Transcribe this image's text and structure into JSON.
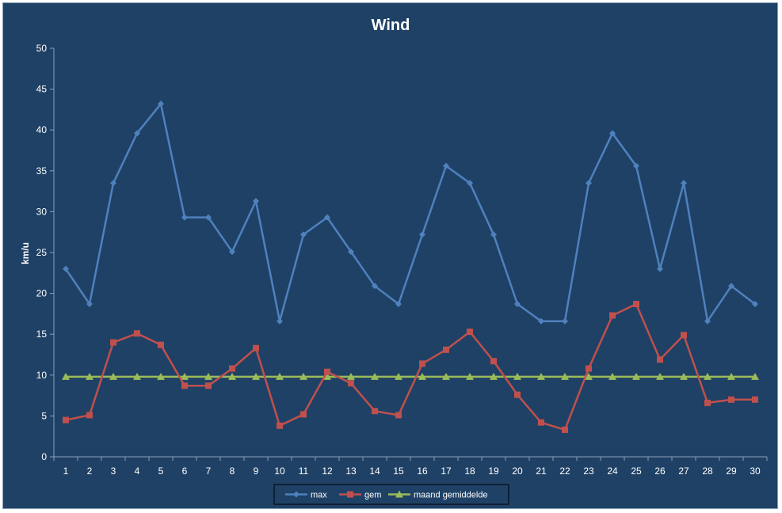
{
  "chart_data": {
    "type": "line",
    "title": "Wind",
    "xlabel": "",
    "ylabel": "km/u",
    "ylim": [
      0,
      50
    ],
    "yticks": [
      0,
      5,
      10,
      15,
      20,
      25,
      30,
      35,
      40,
      45,
      50
    ],
    "categories": [
      "1",
      "2",
      "3",
      "4",
      "5",
      "6",
      "7",
      "8",
      "9",
      "10",
      "11",
      "12",
      "13",
      "14",
      "15",
      "16",
      "17",
      "18",
      "19",
      "20",
      "21",
      "22",
      "23",
      "24",
      "25",
      "26",
      "27",
      "28",
      "29",
      "30"
    ],
    "grid": false,
    "legend_position": "bottom",
    "series": [
      {
        "name": "max",
        "color": "#4f81bd",
        "marker": "diamond",
        "values": [
          23.0,
          18.7,
          33.5,
          39.6,
          43.2,
          29.3,
          29.3,
          25.1,
          31.3,
          16.6,
          27.2,
          29.3,
          25.1,
          20.9,
          18.7,
          27.2,
          35.6,
          33.5,
          27.2,
          18.7,
          16.6,
          16.6,
          33.5,
          39.6,
          35.6,
          23.0,
          33.5,
          16.6,
          20.9,
          18.7
        ]
      },
      {
        "name": "gem",
        "color": "#c0504d",
        "marker": "square",
        "values": [
          4.5,
          5.1,
          14.0,
          15.1,
          13.7,
          8.7,
          8.7,
          10.8,
          13.3,
          3.8,
          5.2,
          10.4,
          9.0,
          5.6,
          5.1,
          11.4,
          13.1,
          15.3,
          11.7,
          7.6,
          4.2,
          3.3,
          10.8,
          17.3,
          18.7,
          11.9,
          14.9,
          6.6,
          7.0,
          7.0
        ]
      },
      {
        "name": "maand gemiddelde",
        "color": "#9bbb59",
        "marker": "triangle",
        "values": [
          9.8,
          9.8,
          9.8,
          9.8,
          9.8,
          9.8,
          9.8,
          9.8,
          9.8,
          9.8,
          9.8,
          9.8,
          9.8,
          9.8,
          9.8,
          9.8,
          9.8,
          9.8,
          9.8,
          9.8,
          9.8,
          9.8,
          9.8,
          9.8,
          9.8,
          9.8,
          9.8,
          9.8,
          9.8,
          9.8
        ]
      }
    ]
  }
}
